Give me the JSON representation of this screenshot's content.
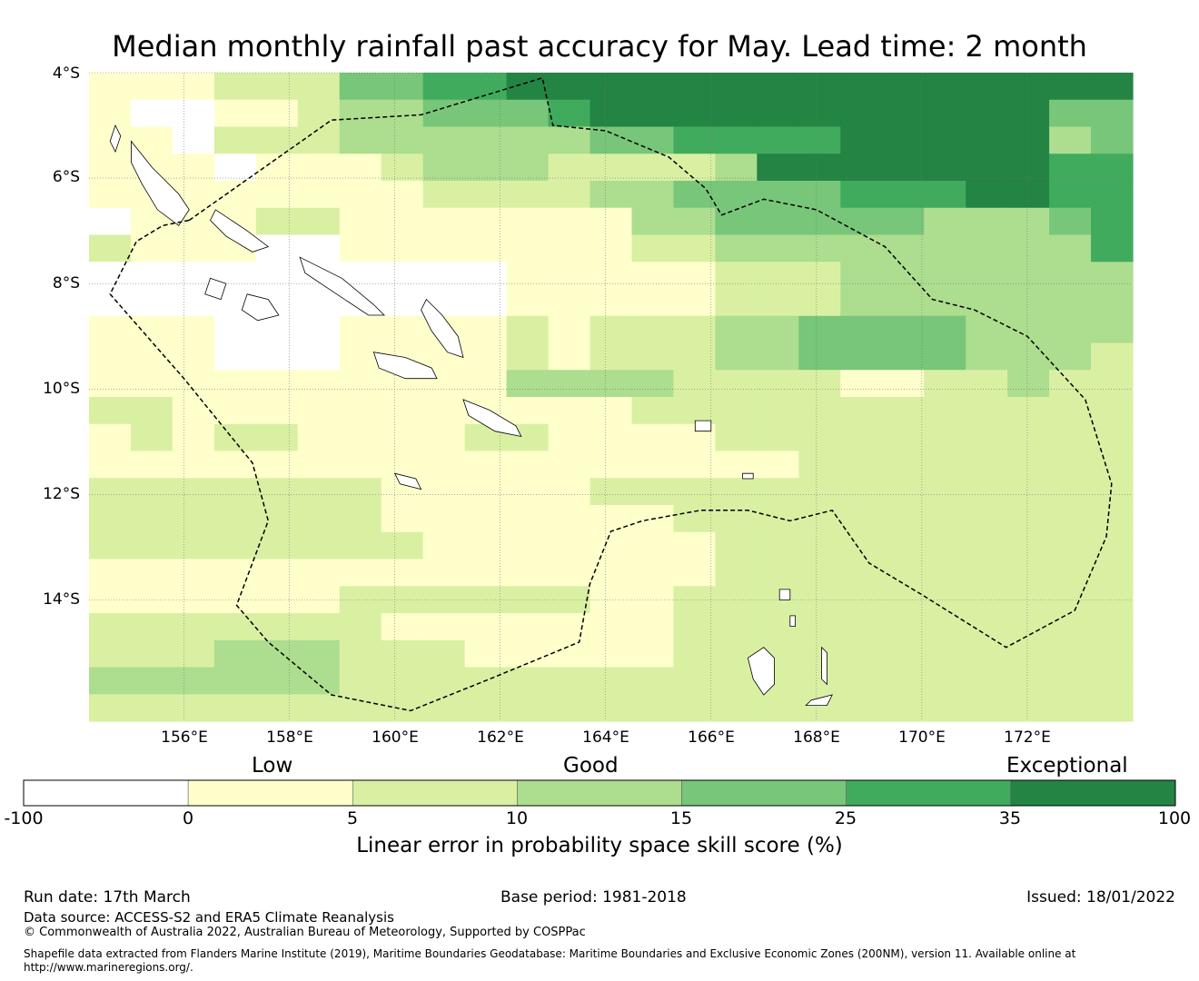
{
  "title": "Median monthly rainfall past accuracy for May. Lead time: 2 month",
  "map": {
    "lat_labels": [
      "4°S",
      "6°S",
      "8°S",
      "10°S",
      "12°S",
      "14°S"
    ],
    "lon_labels": [
      "156°E",
      "158°E",
      "160°E",
      "162°E",
      "164°E",
      "166°E",
      "168°E",
      "170°E",
      "172°E"
    ],
    "extent": {
      "lon_min": 154.2,
      "lon_max": 174.0,
      "lat_min": -16.3,
      "lat_max": -4.0
    },
    "cell_deg": 0.83,
    "grid_rows": [
      "1112224455666666666666666",
      "1001123344456666666666644",
      "1102223333334455556666634",
      "1110111233322223666666655",
      "1111111122223344445556655",
      "0111221111111334444433345",
      "2111001111111223333333335",
      "0000000000111112223333333",
      "0000000000111112223333333",
      "1110001111212223344443333",
      "1110001111212223344443332",
      "1111111111333322221122322",
      "2211111111111222222222222",
      "1212211112211112222222222",
      "1111111111111111122222222",
      "2222222111112222222222222",
      "2222222111111122222222222",
      "2222222211111112222222222",
      "1111111111111112222222222",
      "1111112222221122222222222",
      "2222222111111122222222222",
      "2223332221111122222222222",
      "3333332222222222222222222",
      "2222222222222222222222222"
    ],
    "color_scale": [
      "#ffffff",
      "#ffffcc",
      "#d9f0a3",
      "#addd8e",
      "#78c679",
      "#41ab5d",
      "#238443"
    ]
  },
  "colorbar": {
    "categories": [
      "Low",
      "Good",
      "Exceptional"
    ],
    "ticks": [
      "-100",
      "0",
      "5",
      "10",
      "15",
      "25",
      "35",
      "100"
    ],
    "colors": [
      "#ffffff",
      "#ffffcc",
      "#d9f0a3",
      "#addd8e",
      "#78c679",
      "#41ab5d",
      "#238443"
    ],
    "label": "Linear error in probability space skill score (%)"
  },
  "footer": {
    "run_date": "Run date: 17th March",
    "base_period": "Base period: 1981-2018",
    "issued": "Issued: 18/01/2022",
    "data_source": "Data source: ACCESS-S2 and ERA5 Climate Reanalysis",
    "copyright": "© Commonwealth of Australia 2022, Australian Bureau of Meteorology, Supported by COSPPac",
    "shapefile_line1": "Shapefile data extracted from Flanders Marine Institute (2019), Maritime Boundaries Geodatabase: Maritime Boundaries and Exclusive Economic Zones (200NM), version 11. Available online at",
    "shapefile_line2": "http://www.marineregions.org/."
  }
}
